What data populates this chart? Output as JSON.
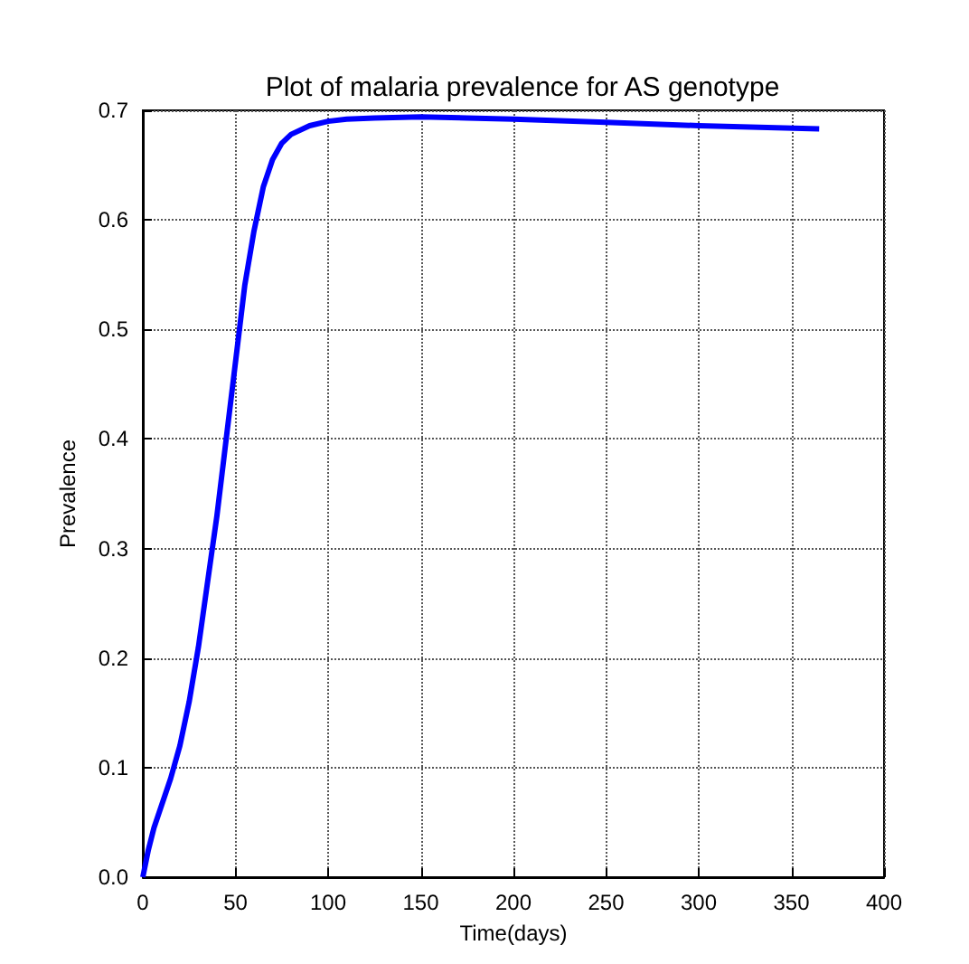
{
  "chart_data": {
    "type": "line",
    "title": "Plot of malaria prevalence for AS genotype",
    "xlabel": "Time(days)",
    "ylabel": "Prevalence",
    "series": [
      {
        "color": "#0000ff",
        "x": [
          0,
          3,
          6,
          10,
          15,
          20,
          25,
          30,
          35,
          40,
          45,
          50,
          55,
          60,
          65,
          70,
          75,
          80,
          90,
          100,
          110,
          125,
          150,
          175,
          200,
          250,
          300,
          365
        ],
        "values": [
          0,
          0.025,
          0.045,
          0.065,
          0.09,
          0.12,
          0.16,
          0.21,
          0.27,
          0.33,
          0.4,
          0.47,
          0.54,
          0.59,
          0.63,
          0.655,
          0.67,
          0.678,
          0.686,
          0.69,
          0.692,
          0.693,
          0.694,
          0.693,
          0.692,
          0.689,
          0.686,
          0.683
        ]
      }
    ],
    "xlim": [
      0,
      400
    ],
    "xticks": [
      0,
      50,
      100,
      150,
      200,
      250,
      300,
      350,
      400
    ],
    "ylim": [
      0,
      0.7
    ],
    "yticks": [
      {
        "value": 0,
        "label": "0.0"
      },
      0.1,
      0.2,
      0.3,
      0.4,
      0.5,
      0.6,
      0.7
    ],
    "grid": true,
    "marker": "none",
    "line_style": "solid"
  }
}
